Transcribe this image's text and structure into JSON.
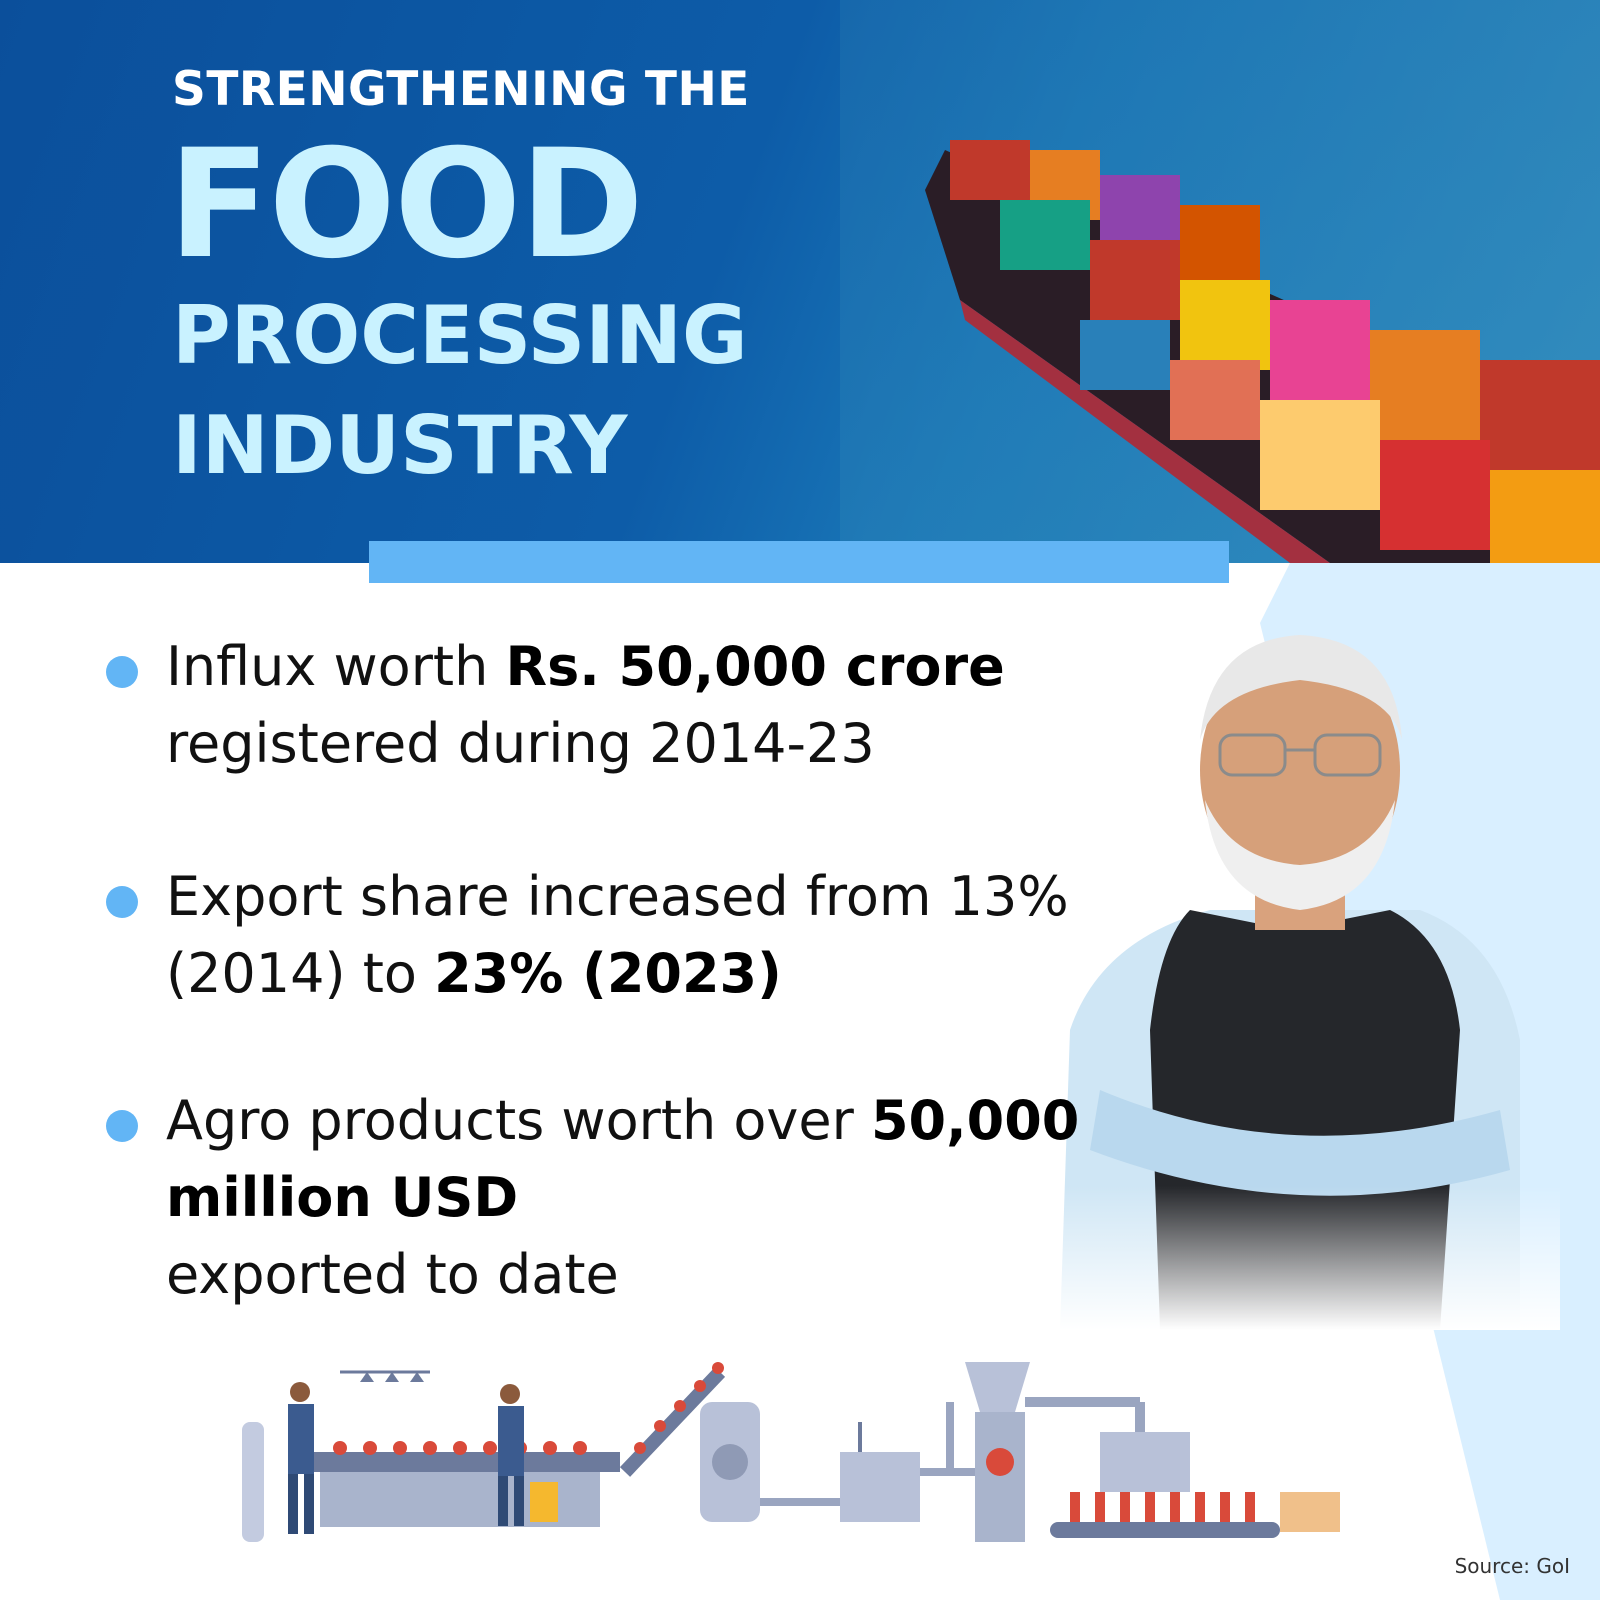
{
  "header": {
    "line1": "STRENGTHENING THE",
    "line2": "FOOD",
    "line3": "PROCESSING",
    "line4": "INDUSTRY"
  },
  "bullets": [
    {
      "text_before": "Influx worth ",
      "bold": "Rs. 50,000 crore",
      "text_after": " registered during 2014-23"
    },
    {
      "text_before": "Export share increased from 13% (2014) to ",
      "bold": "23% (2023)",
      "text_after": ""
    },
    {
      "text_before": "Agro products worth over ",
      "bold": "50,000 million USD",
      "text_after": " exported to date"
    }
  ],
  "source": "Source: GoI",
  "colors": {
    "primary_blue": "#0b4f9b",
    "accent_light_blue": "#62b5f5",
    "title_cyan": "#c9f2ff",
    "bullet_dot": "#62b5f5"
  },
  "images": {
    "hero_photo": "cargo-ship-with-containers",
    "portrait": "man-with-white-beard-in-black-vest",
    "illustration": "food-processing-factory-line"
  }
}
